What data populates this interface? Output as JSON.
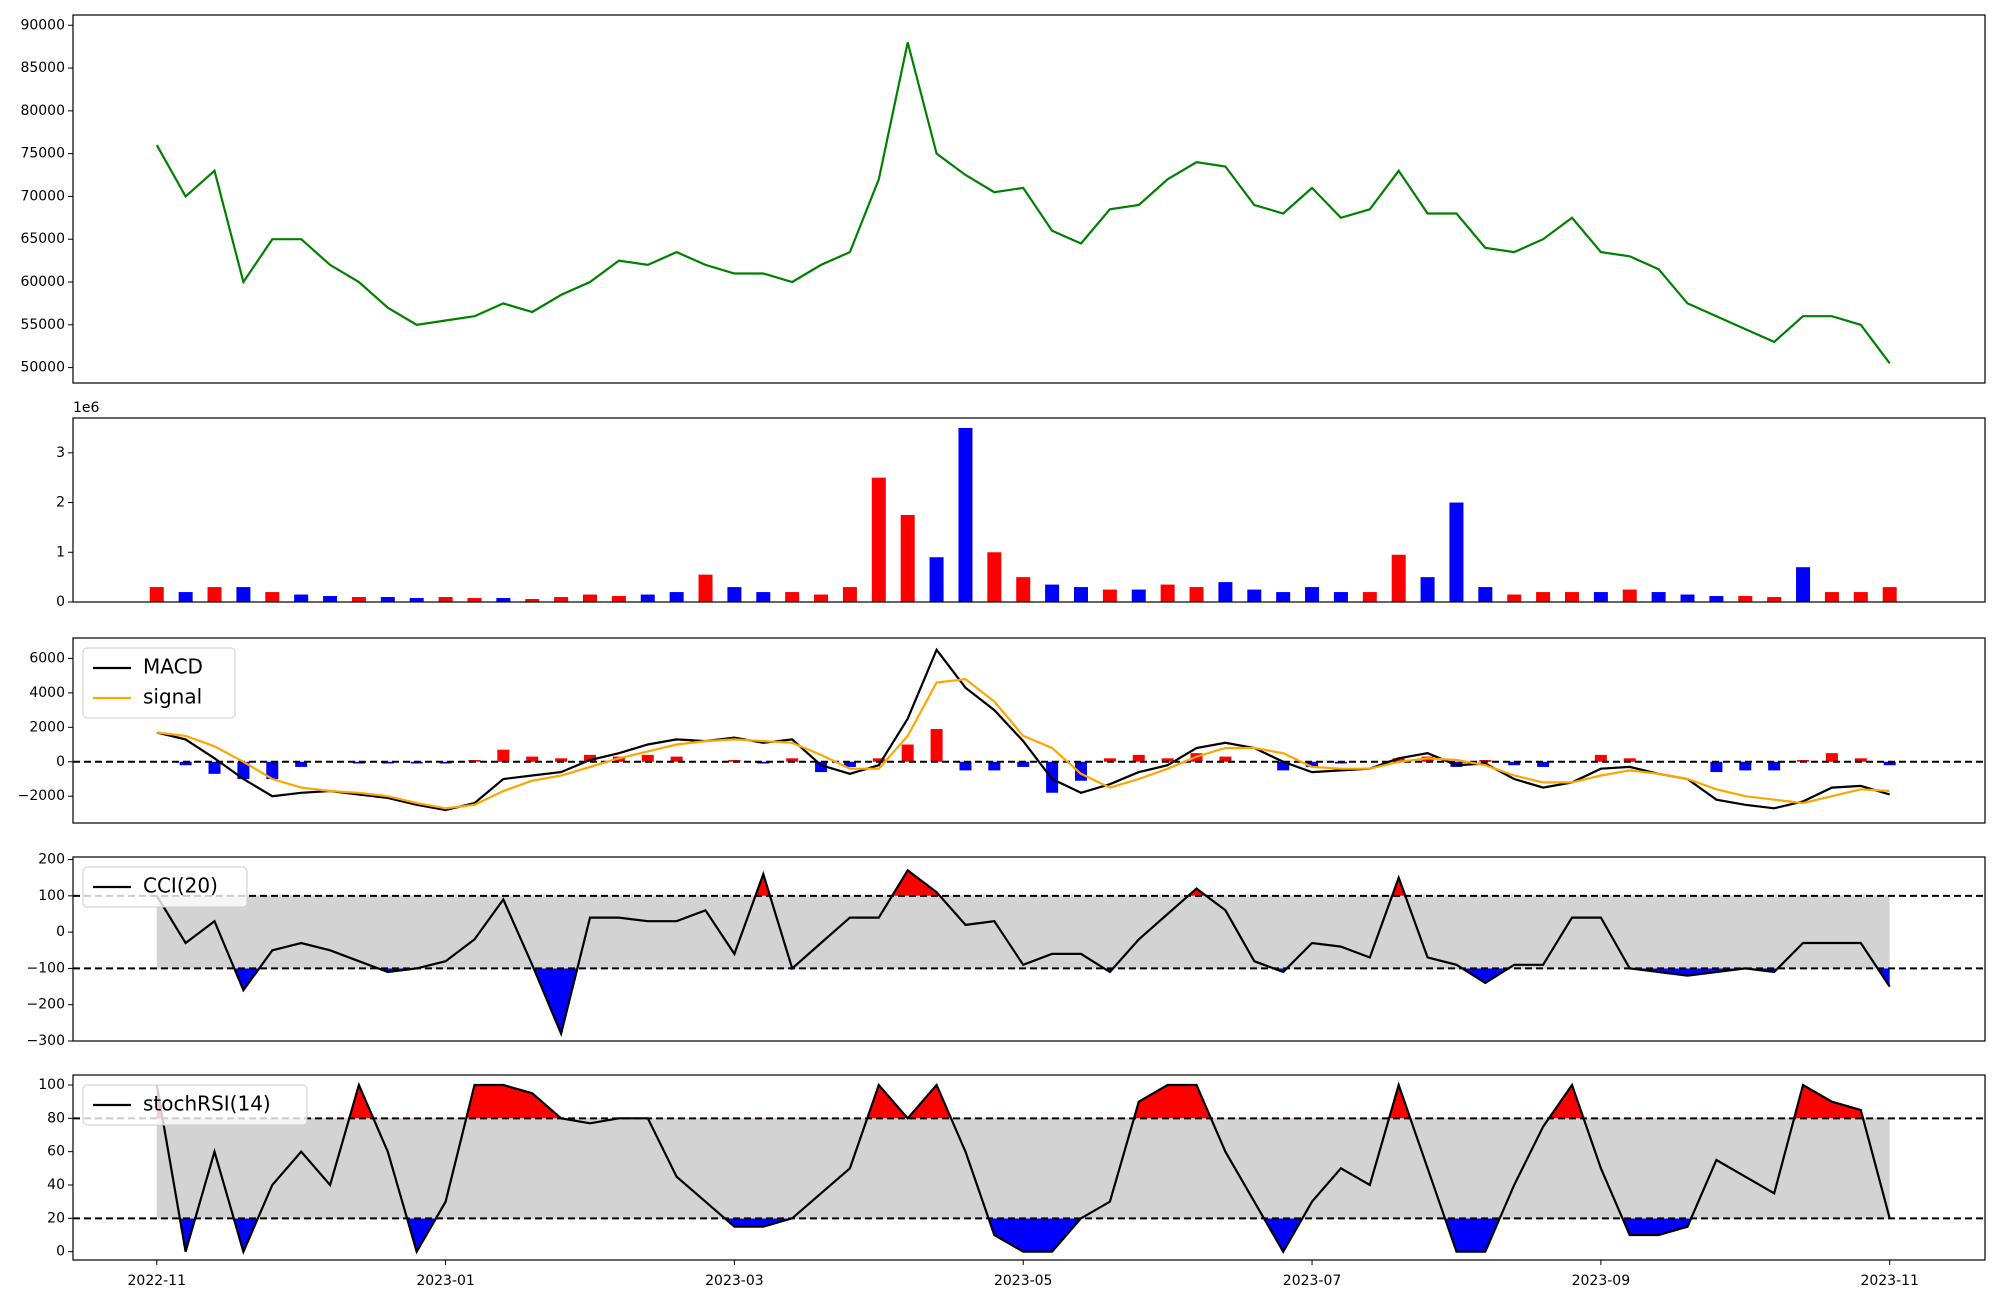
{
  "chart_data": [
    {
      "type": "line",
      "color": "green",
      "values": [
        76000,
        70000,
        73000,
        60000,
        65000,
        65000,
        62000,
        60000,
        57000,
        55000,
        55500,
        56000,
        57500,
        56500,
        58500,
        60000,
        62500,
        62000,
        63500,
        62000,
        61000,
        61000,
        60000,
        62000,
        63500,
        72000,
        88000,
        75000,
        72500,
        70500,
        71000,
        66000,
        64500,
        68500,
        69000,
        72000,
        74000,
        73500,
        69000,
        68000,
        71000,
        67500,
        68500,
        73000,
        68000,
        68000,
        64000,
        63500,
        65000,
        67500,
        63500,
        63000,
        61500,
        57500,
        56000,
        54500,
        53000,
        56000,
        56000,
        55000,
        50500
      ],
      "ylim": [
        48200,
        91200
      ],
      "yticks": [
        50000,
        55000,
        60000,
        65000,
        70000,
        75000,
        80000,
        85000,
        90000
      ]
    },
    {
      "type": "bar",
      "offset_label": "1e6",
      "values": [
        300000,
        200000,
        300000,
        300000,
        200000,
        150000,
        120000,
        100000,
        100000,
        80000,
        100000,
        80000,
        80000,
        60000,
        100000,
        150000,
        120000,
        150000,
        200000,
        550000,
        300000,
        200000,
        200000,
        150000,
        300000,
        2500000,
        1750000,
        900000,
        3500000,
        1000000,
        500000,
        350000,
        300000,
        250000,
        250000,
        350000,
        300000,
        400000,
        250000,
        200000,
        300000,
        200000,
        200000,
        950000,
        500000,
        2000000,
        300000,
        150000,
        200000,
        200000,
        200000,
        250000,
        200000,
        150000,
        120000,
        120000,
        100000,
        700000,
        200000,
        200000,
        300000
      ],
      "colors": [
        "red",
        "blue",
        "red",
        "blue",
        "red",
        "blue",
        "blue",
        "red",
        "blue",
        "blue",
        "red",
        "red",
        "blue",
        "red",
        "red",
        "red",
        "red",
        "blue",
        "blue",
        "red",
        "blue",
        "blue",
        "red",
        "red",
        "red",
        "red",
        "red",
        "blue",
        "blue",
        "red",
        "red",
        "blue",
        "blue",
        "red",
        "blue",
        "red",
        "red",
        "blue",
        "blue",
        "blue",
        "blue",
        "blue",
        "red",
        "red",
        "blue",
        "blue",
        "blue",
        "red",
        "red",
        "red",
        "blue",
        "red",
        "blue",
        "blue",
        "blue",
        "red",
        "red",
        "blue",
        "red",
        "red",
        "red"
      ],
      "ylim": [
        0,
        3700000
      ],
      "yticks": [
        0,
        {
          "value": 1000000,
          "label": "1"
        },
        {
          "value": 2000000,
          "label": "2"
        },
        {
          "value": 3000000,
          "label": "3"
        }
      ]
    },
    {
      "type": "line",
      "legend": "upper left",
      "hlines": [
        0
      ],
      "series": [
        {
          "name": "MACD",
          "color": "black",
          "values": [
            1700,
            1300,
            200,
            -1000,
            -2000,
            -1800,
            -1700,
            -1900,
            -2100,
            -2500,
            -2800,
            -2400,
            -1000,
            -800,
            -600,
            100,
            500,
            1000,
            1300,
            1200,
            1400,
            1100,
            1300,
            -200,
            -700,
            -200,
            2500,
            6500,
            4300,
            3000,
            1200,
            -1000,
            -1800,
            -1300,
            -600,
            -200,
            800,
            1100,
            800,
            0,
            -600,
            -500,
            -400,
            200,
            500,
            -200,
            -100,
            -1000,
            -1500,
            -1200,
            -400,
            -300,
            -700,
            -1000,
            -2200,
            -2500,
            -2700,
            -2300,
            -1500,
            -1400,
            -1900
          ]
        },
        {
          "name": "signal",
          "color": "orange",
          "values": [
            1700,
            1500,
            900,
            0,
            -1000,
            -1500,
            -1700,
            -1800,
            -2000,
            -2400,
            -2700,
            -2500,
            -1700,
            -1100,
            -800,
            -300,
            200,
            600,
            1000,
            1200,
            1300,
            1200,
            1100,
            400,
            -400,
            -400,
            1500,
            4600,
            4800,
            3500,
            1500,
            800,
            -700,
            -1500,
            -1000,
            -400,
            300,
            800,
            800,
            500,
            -300,
            -400,
            -400,
            0,
            200,
            100,
            -200,
            -800,
            -1200,
            -1200,
            -800,
            -500,
            -700,
            -1000,
            -1600,
            -2000,
            -2200,
            -2400,
            -2000,
            -1600,
            -1700
          ]
        }
      ],
      "histogram": {
        "positive_color": "red",
        "negative_color": "blue",
        "values": [
          0,
          -200,
          -700,
          -1000,
          -1000,
          -300,
          0,
          -100,
          -100,
          -100,
          -100,
          100,
          700,
          300,
          200,
          400,
          300,
          400,
          300,
          0,
          100,
          -100,
          200,
          -600,
          -300,
          200,
          1000,
          1900,
          -500,
          -500,
          -300,
          -1800,
          -1100,
          200,
          400,
          200,
          500,
          300,
          0,
          -500,
          -300,
          -100,
          0,
          200,
          300,
          -300,
          100,
          -200,
          -300,
          0,
          400,
          200,
          0,
          0,
          -600,
          -500,
          -500,
          100,
          500,
          200,
          -200
        ]
      },
      "ylim": [
        -3555,
        7185
      ],
      "yticks": [
        {
          "value": -2000,
          "label": "−2000"
        },
        0,
        2000,
        4000,
        6000
      ]
    },
    {
      "type": "line",
      "legend": "upper left",
      "hlines": [
        100,
        -100
      ],
      "band_color": "#d3d3d3",
      "over_color": "red",
      "under_color": "blue",
      "series": [
        {
          "name": "CCI(20)",
          "color": "black",
          "values": [
            100,
            -30,
            30,
            -160,
            -50,
            -30,
            -50,
            -80,
            -110,
            -100,
            -80,
            -20,
            90,
            -90,
            -280,
            40,
            40,
            30,
            30,
            60,
            -60,
            160,
            -100,
            -30,
            40,
            40,
            170,
            110,
            20,
            30,
            -90,
            -60,
            -60,
            -110,
            -20,
            50,
            120,
            60,
            -80,
            -110,
            -30,
            -40,
            -70,
            150,
            -70,
            -90,
            -140,
            -90,
            -90,
            40,
            40,
            -100,
            -110,
            -120,
            -110,
            -100,
            -110,
            -30,
            -30,
            -30,
            -150
          ]
        }
      ],
      "ylim": [
        -300,
        207
      ],
      "yticks": [
        {
          "value": -300,
          "label": "−300"
        },
        {
          "value": -200,
          "label": "−200"
        },
        {
          "value": -100,
          "label": "−100"
        },
        0,
        100,
        200
      ]
    },
    {
      "type": "line",
      "legend": "upper left",
      "hlines": [
        80,
        20
      ],
      "band_color": "#d3d3d3",
      "over_color": "red",
      "under_color": "blue",
      "series": [
        {
          "name": "stochRSI(14)",
          "color": "black",
          "values": [
            100,
            0,
            60,
            0,
            40,
            60,
            40,
            100,
            60,
            0,
            30,
            100,
            100,
            95,
            80,
            77,
            80,
            80,
            45,
            30,
            15,
            15,
            20,
            35,
            50,
            100,
            80,
            100,
            60,
            10,
            0,
            0,
            20,
            30,
            90,
            100,
            100,
            60,
            30,
            0,
            30,
            50,
            40,
            100,
            50,
            0,
            0,
            40,
            75,
            100,
            50,
            10,
            10,
            15,
            55,
            45,
            35,
            100,
            90,
            85,
            20
          ]
        }
      ],
      "ylim": [
        -5,
        106
      ],
      "yticks": [
        0,
        20,
        40,
        60,
        80,
        100
      ],
      "x": [
        0,
        0.2,
        0.4,
        0.6,
        0.8,
        1,
        1.2,
        1.4,
        1.6,
        1.8,
        2,
        2.2,
        2.4,
        2.6,
        2.8,
        3,
        3.2,
        3.4,
        3.6,
        3.8,
        4,
        4.2,
        4.4,
        4.6,
        4.8,
        5,
        5.2,
        5.4,
        5.6,
        5.8,
        6,
        6.2,
        6.4,
        6.6,
        6.8,
        7,
        7.2,
        7.4,
        7.6,
        7.8,
        8,
        8.2,
        8.4,
        8.6,
        8.8,
        9,
        9.2,
        9.4,
        9.6,
        9.8,
        10,
        10.2,
        10.4,
        10.6,
        10.8,
        11,
        11.2,
        11.4,
        11.6,
        11.8,
        12
      ],
      "xlim": [
        -0.58,
        12.66
      ],
      "xticks": [
        {
          "value": 0,
          "label": "2022-11"
        },
        {
          "value": 2,
          "label": "2023-01"
        },
        {
          "value": 4,
          "label": "2023-03"
        },
        {
          "value": 6,
          "label": "2023-05"
        },
        {
          "value": 8,
          "label": "2023-07"
        },
        {
          "value": 10,
          "label": "2023-09"
        },
        {
          "value": 12,
          "label": "2023-11"
        }
      ]
    }
  ]
}
